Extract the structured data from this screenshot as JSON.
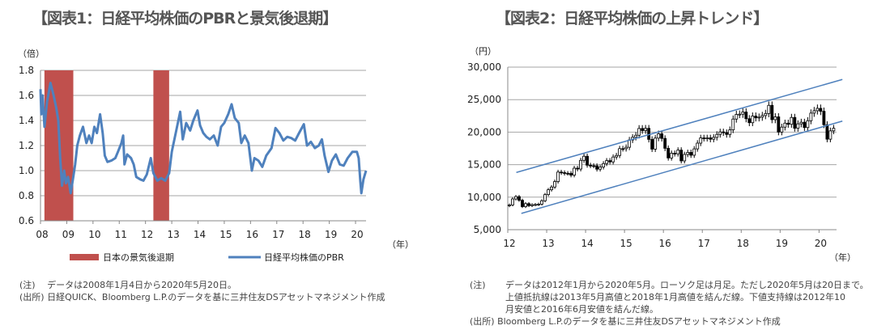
{
  "chart_data": [
    {
      "type": "line",
      "title": "【図表1：日経平均株価のPBRと景気後退期】",
      "ylabel": "（倍）",
      "xlabel": "（年）",
      "ylim": [
        0.6,
        1.8
      ],
      "yticks": [
        "0.6",
        "0.8",
        "1.0",
        "1.2",
        "1.4",
        "1.6",
        "1.8"
      ],
      "xlim": [
        2008.0,
        2020.4
      ],
      "xticks": [
        {
          "year": 2008,
          "label": "08"
        },
        {
          "year": 2009,
          "label": "09"
        },
        {
          "year": 2010,
          "label": "10"
        },
        {
          "year": 2011,
          "label": "11"
        },
        {
          "year": 2012,
          "label": "12"
        },
        {
          "year": 2013,
          "label": "13"
        },
        {
          "year": 2014,
          "label": "14"
        },
        {
          "year": 2015,
          "label": "15"
        },
        {
          "year": 2016,
          "label": "16"
        },
        {
          "year": 2017,
          "label": "17"
        },
        {
          "year": 2018,
          "label": "18"
        },
        {
          "year": 2019,
          "label": "19"
        },
        {
          "year": 2020,
          "label": "20"
        }
      ],
      "grid": true,
      "legend": [
        {
          "name": "日本の景気後退期",
          "color": "#c0504d"
        },
        {
          "name": "日経平均株価のPBR",
          "color": "#4f81bd"
        }
      ],
      "recessions": [
        [
          2008.15,
          2009.25
        ],
        [
          2012.3,
          2012.9
        ]
      ],
      "series": [
        {
          "name": "日経平均株価のPBR",
          "points": [
            [
              2008.0,
              1.65
            ],
            [
              2008.03,
              1.45
            ],
            [
              2008.08,
              1.6
            ],
            [
              2008.15,
              1.35
            ],
            [
              2008.25,
              1.55
            ],
            [
              2008.38,
              1.7
            ],
            [
              2008.5,
              1.6
            ],
            [
              2008.6,
              1.5
            ],
            [
              2008.68,
              1.4
            ],
            [
              2008.75,
              1.1
            ],
            [
              2008.82,
              0.88
            ],
            [
              2008.9,
              1.0
            ],
            [
              2008.97,
              0.9
            ],
            [
              2009.05,
              0.95
            ],
            [
              2009.15,
              0.82
            ],
            [
              2009.25,
              0.95
            ],
            [
              2009.32,
              1.05
            ],
            [
              2009.4,
              1.2
            ],
            [
              2009.5,
              1.28
            ],
            [
              2009.62,
              1.35
            ],
            [
              2009.75,
              1.22
            ],
            [
              2009.85,
              1.28
            ],
            [
              2009.95,
              1.22
            ],
            [
              2010.05,
              1.35
            ],
            [
              2010.15,
              1.3
            ],
            [
              2010.27,
              1.45
            ],
            [
              2010.37,
              1.3
            ],
            [
              2010.45,
              1.12
            ],
            [
              2010.55,
              1.07
            ],
            [
              2010.7,
              1.08
            ],
            [
              2010.85,
              1.1
            ],
            [
              2010.95,
              1.15
            ],
            [
              2011.08,
              1.22
            ],
            [
              2011.15,
              1.28
            ],
            [
              2011.2,
              1.05
            ],
            [
              2011.3,
              1.13
            ],
            [
              2011.45,
              1.1
            ],
            [
              2011.55,
              1.05
            ],
            [
              2011.65,
              0.95
            ],
            [
              2011.8,
              0.93
            ],
            [
              2011.92,
              0.92
            ],
            [
              2012.05,
              0.97
            ],
            [
              2012.2,
              1.1
            ],
            [
              2012.3,
              0.98
            ],
            [
              2012.45,
              0.92
            ],
            [
              2012.6,
              0.94
            ],
            [
              2012.75,
              0.92
            ],
            [
              2012.9,
              0.98
            ],
            [
              2013.0,
              1.15
            ],
            [
              2013.15,
              1.3
            ],
            [
              2013.32,
              1.47
            ],
            [
              2013.42,
              1.25
            ],
            [
              2013.55,
              1.38
            ],
            [
              2013.7,
              1.32
            ],
            [
              2013.82,
              1.4
            ],
            [
              2013.98,
              1.48
            ],
            [
              2014.08,
              1.36
            ],
            [
              2014.2,
              1.3
            ],
            [
              2014.32,
              1.27
            ],
            [
              2014.45,
              1.25
            ],
            [
              2014.6,
              1.28
            ],
            [
              2014.75,
              1.2
            ],
            [
              2014.88,
              1.35
            ],
            [
              2015.0,
              1.38
            ],
            [
              2015.15,
              1.45
            ],
            [
              2015.28,
              1.53
            ],
            [
              2015.4,
              1.42
            ],
            [
              2015.55,
              1.38
            ],
            [
              2015.65,
              1.22
            ],
            [
              2015.78,
              1.28
            ],
            [
              2015.92,
              1.22
            ],
            [
              2016.05,
              1.0
            ],
            [
              2016.15,
              1.1
            ],
            [
              2016.3,
              1.08
            ],
            [
              2016.45,
              1.03
            ],
            [
              2016.6,
              1.12
            ],
            [
              2016.8,
              1.18
            ],
            [
              2016.95,
              1.34
            ],
            [
              2017.1,
              1.3
            ],
            [
              2017.25,
              1.24
            ],
            [
              2017.4,
              1.27
            ],
            [
              2017.55,
              1.26
            ],
            [
              2017.7,
              1.24
            ],
            [
              2017.85,
              1.3
            ],
            [
              2018.03,
              1.37
            ],
            [
              2018.15,
              1.2
            ],
            [
              2018.3,
              1.23
            ],
            [
              2018.45,
              1.18
            ],
            [
              2018.6,
              1.2
            ],
            [
              2018.72,
              1.25
            ],
            [
              2018.82,
              1.12
            ],
            [
              2018.97,
              0.99
            ],
            [
              2019.1,
              1.08
            ],
            [
              2019.25,
              1.13
            ],
            [
              2019.4,
              1.05
            ],
            [
              2019.55,
              1.04
            ],
            [
              2019.7,
              1.1
            ],
            [
              2019.88,
              1.15
            ],
            [
              2020.05,
              1.15
            ],
            [
              2020.12,
              1.1
            ],
            [
              2020.18,
              0.92
            ],
            [
              2020.22,
              0.82
            ],
            [
              2020.3,
              0.93
            ],
            [
              2020.4,
              1.0
            ]
          ]
        }
      ]
    },
    {
      "type": "candlestick",
      "title": "【図表2：日経平均株価の上昇トレンド】",
      "ylabel": "（円）",
      "xlabel": "（年）",
      "ylim": [
        5000,
        30000
      ],
      "yticks": [
        "5,000",
        "10,000",
        "15,000",
        "20,000",
        "25,000",
        "30,000"
      ],
      "xlim": [
        2012.0,
        2020.45
      ],
      "xticks": [
        {
          "year": 2012,
          "label": "12"
        },
        {
          "year": 2013,
          "label": "13"
        },
        {
          "year": 2014,
          "label": "14"
        },
        {
          "year": 2015,
          "label": "15"
        },
        {
          "year": 2016,
          "label": "16"
        },
        {
          "year": 2017,
          "label": "17"
        },
        {
          "year": 2018,
          "label": "18"
        },
        {
          "year": 2019,
          "label": "19"
        },
        {
          "year": 2020,
          "label": "20"
        }
      ],
      "grid": true,
      "start_month": "2012-01",
      "monthly_close": [
        8803,
        9723,
        10084,
        9521,
        8543,
        9007,
        8695,
        8840,
        8870,
        8928,
        9446,
        10395,
        11139,
        11559,
        12398,
        13861,
        13775,
        13677,
        13668,
        13389,
        14456,
        14328,
        15662,
        16291,
        14915,
        14841,
        14828,
        14304,
        14632,
        15162,
        15621,
        15425,
        16174,
        16414,
        17460,
        17451,
        17674,
        18798,
        19207,
        19520,
        20563,
        20236,
        20585,
        18890,
        17388,
        19083,
        19747,
        19034,
        17518,
        16027,
        16759,
        16666,
        17235,
        15576,
        16569,
        16887,
        16450,
        17425,
        18308,
        19114,
        19041,
        19119,
        18909,
        19197,
        19651,
        20033,
        19925,
        19646,
        20356,
        22012,
        22725,
        22765,
        23098,
        22068,
        21454,
        22468,
        22202,
        22305,
        22554,
        22865,
        24120,
        21920,
        22351,
        20015,
        20773,
        21385,
        21206,
        22259,
        20601,
        21276,
        21522,
        20704,
        21756,
        22927,
        23294,
        23657,
        23205,
        21143,
        18917,
        20194,
        20595
      ],
      "trendlines": [
        {
          "name": "上値抵抗線",
          "from": [
            2012.22,
            13800
          ],
          "to": [
            2020.6,
            28100
          ],
          "color": "#4f81bd"
        },
        {
          "name": "下値支持線",
          "from": [
            2012.35,
            7500
          ],
          "to": [
            2020.6,
            21700
          ],
          "color": "#4f81bd"
        }
      ]
    }
  ],
  "notes1": {
    "note": "(注)　 データは2008年1月4日から2020年5月20日。",
    "source": "(出所) 日経QUICK、Bloomberg L.P.のデータを基に三井住友DSアセットマネジメント作成"
  },
  "notes2": {
    "note_label": "(注)",
    "note_line1": "データは2012年1月から2020年5月。ローソク足は月足。ただし2020年5月は20日まで。",
    "note_line2": "上値抵抗線は2013年5月高値と2018年1月高値を結んだ線。下値支持線は2012年10",
    "note_line3": "月安値と2016年6月安値を結んだ線。",
    "source": "(出所) Bloomberg L.P.のデータを基に三井住友DSアセットマネジメント作成"
  }
}
